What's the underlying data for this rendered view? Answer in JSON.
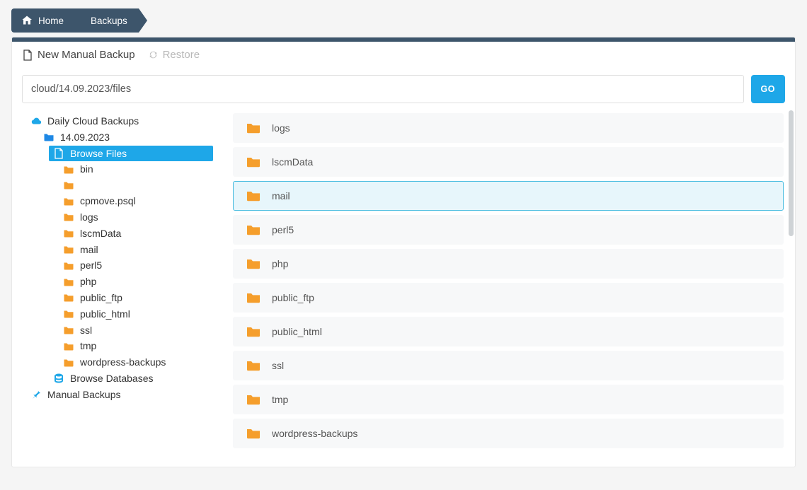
{
  "colors": {
    "breadcrumb_bg": "#3d556b",
    "accent": "#1ea7e8",
    "row_bg": "#f7f8f9",
    "row_hover_bg": "#e7f6fb",
    "row_hover_border": "#4bbde0",
    "folder_orange": "#f59e2c",
    "folder_blue": "#1e88e5",
    "cloud_blue": "#1ea7e8",
    "db_blue": "#1ea7e8",
    "pin_blue": "#1ea7e8",
    "disabled": "#b8b8b8",
    "page_bg": "#f5f5f5"
  },
  "breadcrumb": {
    "items": [
      {
        "label": "Home",
        "icon": "home"
      },
      {
        "label": "Backups"
      }
    ]
  },
  "actions": {
    "new_backup": {
      "label": "New Manual Backup"
    },
    "restore": {
      "label": "Restore",
      "disabled": true
    }
  },
  "path": {
    "value": "cloud/14.09.2023/files",
    "go_label": "GO"
  },
  "tree": {
    "root": {
      "label": "Daily Cloud Backups",
      "icon": "cloud"
    },
    "root_children": [
      {
        "label": "14.09.2023",
        "icon": "folder-blue",
        "children": [
          {
            "label": "Browse Files",
            "icon": "file-white",
            "selected": true,
            "children": [
              {
                "label": "bin"
              },
              {
                "label": ""
              },
              {
                "label": "cpmove.psql"
              },
              {
                "label": "logs"
              },
              {
                "label": "lscmData"
              },
              {
                "label": "mail"
              },
              {
                "label": "perl5"
              },
              {
                "label": "php"
              },
              {
                "label": "public_ftp"
              },
              {
                "label": "public_html"
              },
              {
                "label": "ssl"
              },
              {
                "label": "tmp"
              },
              {
                "label": "wordpress-backups"
              }
            ]
          },
          {
            "label": "Browse Databases",
            "icon": "database"
          }
        ]
      }
    ],
    "siblings": [
      {
        "label": "Manual Backups",
        "icon": "pin"
      }
    ]
  },
  "content": {
    "rows": [
      {
        "label": "logs"
      },
      {
        "label": "lscmData"
      },
      {
        "label": "mail",
        "hover": true
      },
      {
        "label": "perl5"
      },
      {
        "label": "php"
      },
      {
        "label": "public_ftp"
      },
      {
        "label": "public_html"
      },
      {
        "label": "ssl"
      },
      {
        "label": "tmp"
      },
      {
        "label": "wordpress-backups"
      }
    ]
  }
}
